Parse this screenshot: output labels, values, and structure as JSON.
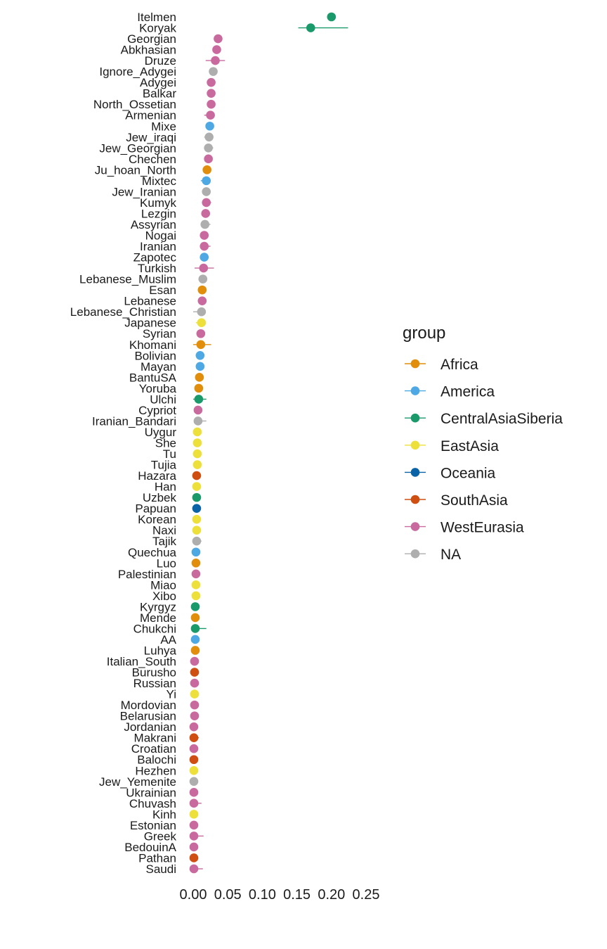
{
  "chart_data": {
    "type": "scatter",
    "subtype": "point-range (dot with horizontal error bars)",
    "title": "",
    "xlabel": "",
    "ylabel": "",
    "xlim": [
      0,
      0.25
    ],
    "x_ticks": [
      0.0,
      0.05,
      0.1,
      0.15,
      0.2,
      0.25
    ],
    "x_tick_labels": [
      "0.00",
      "0.05",
      "0.10",
      "0.15",
      "0.20",
      "0.25"
    ],
    "grid": false,
    "legend": {
      "title": "group",
      "position": "right",
      "entries": [
        "Africa",
        "America",
        "CentralAsiaSiberia",
        "EastAsia",
        "Oceania",
        "SouthAsia",
        "WestEurasia",
        "NA"
      ]
    },
    "group_colors": {
      "Africa": "#E08E0B",
      "America": "#4EA8E4",
      "CentralAsiaSiberia": "#1A9A6B",
      "EastAsia": "#EEE03A",
      "Oceania": "#0A62A7",
      "SouthAsia": "#CF4E12",
      "WestEurasia": "#C96A9E",
      "NA": "#AEAEAE"
    },
    "points": [
      {
        "label": "Itelmen",
        "group": "CentralAsiaSiberia",
        "x": 0.2,
        "lo": 0.195,
        "hi": 0.206
      },
      {
        "label": "Koryak",
        "group": "CentralAsiaSiberia",
        "x": 0.17,
        "lo": 0.152,
        "hi": 0.224
      },
      {
        "label": "Georgian",
        "group": "WestEurasia",
        "x": 0.036,
        "lo": 0.032,
        "hi": 0.04
      },
      {
        "label": "Abkhasian",
        "group": "WestEurasia",
        "x": 0.034,
        "lo": 0.03,
        "hi": 0.04
      },
      {
        "label": "Druze",
        "group": "WestEurasia",
        "x": 0.032,
        "lo": 0.018,
        "hi": 0.046
      },
      {
        "label": "Ignore_Adygei",
        "group": "NA",
        "x": 0.029,
        "lo": 0.026,
        "hi": 0.032
      },
      {
        "label": "Adygei",
        "group": "WestEurasia",
        "x": 0.026,
        "lo": 0.023,
        "hi": 0.03
      },
      {
        "label": "Balkar",
        "group": "WestEurasia",
        "x": 0.026,
        "lo": 0.022,
        "hi": 0.03
      },
      {
        "label": "North_Ossetian",
        "group": "WestEurasia",
        "x": 0.026,
        "lo": 0.023,
        "hi": 0.03
      },
      {
        "label": "Armenian",
        "group": "WestEurasia",
        "x": 0.025,
        "lo": 0.016,
        "hi": 0.031
      },
      {
        "label": "Mixe",
        "group": "America",
        "x": 0.024,
        "lo": 0.021,
        "hi": 0.027
      },
      {
        "label": "Jew_iraqi",
        "group": "NA",
        "x": 0.023,
        "lo": 0.016,
        "hi": 0.029
      },
      {
        "label": "Jew_Georgian",
        "group": "NA",
        "x": 0.022,
        "lo": 0.017,
        "hi": 0.029
      },
      {
        "label": "Chechen",
        "group": "WestEurasia",
        "x": 0.022,
        "lo": 0.019,
        "hi": 0.028
      },
      {
        "label": "Ju_hoan_North",
        "group": "Africa",
        "x": 0.02,
        "lo": 0.017,
        "hi": 0.023
      },
      {
        "label": "Mixtec",
        "group": "America",
        "x": 0.019,
        "lo": 0.011,
        "hi": 0.024
      },
      {
        "label": "Jew_Iranian",
        "group": "NA",
        "x": 0.019,
        "lo": 0.016,
        "hi": 0.022
      },
      {
        "label": "Kumyk",
        "group": "WestEurasia",
        "x": 0.019,
        "lo": 0.016,
        "hi": 0.026
      },
      {
        "label": "Lezgin",
        "group": "WestEurasia",
        "x": 0.018,
        "lo": 0.015,
        "hi": 0.021
      },
      {
        "label": "Assyrian",
        "group": "NA",
        "x": 0.017,
        "lo": 0.013,
        "hi": 0.025
      },
      {
        "label": "Nogai",
        "group": "WestEurasia",
        "x": 0.016,
        "lo": 0.013,
        "hi": 0.02
      },
      {
        "label": "Iranian",
        "group": "WestEurasia",
        "x": 0.016,
        "lo": 0.012,
        "hi": 0.025
      },
      {
        "label": "Zapotec",
        "group": "America",
        "x": 0.016,
        "lo": 0.012,
        "hi": 0.02
      },
      {
        "label": "Turkish",
        "group": "WestEurasia",
        "x": 0.015,
        "lo": 0.002,
        "hi": 0.03
      },
      {
        "label": "Lebanese_Muslim",
        "group": "NA",
        "x": 0.014,
        "lo": 0.009,
        "hi": 0.018
      },
      {
        "label": "Esan",
        "group": "Africa",
        "x": 0.013,
        "lo": 0.008,
        "hi": 0.018
      },
      {
        "label": "Lebanese",
        "group": "WestEurasia",
        "x": 0.013,
        "lo": 0.008,
        "hi": 0.018
      },
      {
        "label": "Lebanese_Christian",
        "group": "NA",
        "x": 0.012,
        "lo": 0.0,
        "hi": 0.018
      },
      {
        "label": "Japanese",
        "group": "EastAsia",
        "x": 0.012,
        "lo": 0.004,
        "hi": 0.016
      },
      {
        "label": "Syrian",
        "group": "WestEurasia",
        "x": 0.011,
        "lo": 0.009,
        "hi": 0.015
      },
      {
        "label": "Khomani",
        "group": "Africa",
        "x": 0.011,
        "lo": 0.0,
        "hi": 0.026
      },
      {
        "label": "Bolivian",
        "group": "America",
        "x": 0.01,
        "lo": 0.007,
        "hi": 0.013
      },
      {
        "label": "Mayan",
        "group": "America",
        "x": 0.01,
        "lo": 0.007,
        "hi": 0.013
      },
      {
        "label": "BantuSA",
        "group": "Africa",
        "x": 0.009,
        "lo": 0.006,
        "hi": 0.013
      },
      {
        "label": "Yoruba",
        "group": "Africa",
        "x": 0.008,
        "lo": 0.004,
        "hi": 0.013
      },
      {
        "label": "Ulchi",
        "group": "CentralAsiaSiberia",
        "x": 0.008,
        "lo": 0.0,
        "hi": 0.019
      },
      {
        "label": "Cypriot",
        "group": "WestEurasia",
        "x": 0.007,
        "lo": 0.004,
        "hi": 0.01
      },
      {
        "label": "Iranian_Bandari",
        "group": "NA",
        "x": 0.007,
        "lo": 0.002,
        "hi": 0.019
      },
      {
        "label": "Uygur",
        "group": "EastAsia",
        "x": 0.006,
        "lo": 0.003,
        "hi": 0.009
      },
      {
        "label": "She",
        "group": "EastAsia",
        "x": 0.006,
        "lo": 0.003,
        "hi": 0.009
      },
      {
        "label": "Tu",
        "group": "EastAsia",
        "x": 0.006,
        "lo": 0.003,
        "hi": 0.009
      },
      {
        "label": "Tujia",
        "group": "EastAsia",
        "x": 0.006,
        "lo": 0.003,
        "hi": 0.009
      },
      {
        "label": "Hazara",
        "group": "SouthAsia",
        "x": 0.005,
        "lo": 0.001,
        "hi": 0.009
      },
      {
        "label": "Han",
        "group": "EastAsia",
        "x": 0.005,
        "lo": 0.002,
        "hi": 0.008
      },
      {
        "label": "Uzbek",
        "group": "CentralAsiaSiberia",
        "x": 0.005,
        "lo": 0.002,
        "hi": 0.008
      },
      {
        "label": "Papuan",
        "group": "Oceania",
        "x": 0.005,
        "lo": 0.001,
        "hi": 0.008
      },
      {
        "label": "Korean",
        "group": "EastAsia",
        "x": 0.005,
        "lo": 0.002,
        "hi": 0.008
      },
      {
        "label": "Naxi",
        "group": "EastAsia",
        "x": 0.005,
        "lo": 0.002,
        "hi": 0.008
      },
      {
        "label": "Tajik",
        "group": "NA",
        "x": 0.005,
        "lo": 0.0,
        "hi": 0.012
      },
      {
        "label": "Quechua",
        "group": "America",
        "x": 0.004,
        "lo": 0.001,
        "hi": 0.008
      },
      {
        "label": "Luo",
        "group": "Africa",
        "x": 0.004,
        "lo": 0.001,
        "hi": 0.007
      },
      {
        "label": "Palestinian",
        "group": "WestEurasia",
        "x": 0.004,
        "lo": 0.001,
        "hi": 0.007
      },
      {
        "label": "Miao",
        "group": "EastAsia",
        "x": 0.004,
        "lo": 0.001,
        "hi": 0.008
      },
      {
        "label": "Xibo",
        "group": "EastAsia",
        "x": 0.004,
        "lo": 0.001,
        "hi": 0.007
      },
      {
        "label": "Kyrgyz",
        "group": "CentralAsiaSiberia",
        "x": 0.003,
        "lo": 0.0,
        "hi": 0.006
      },
      {
        "label": "Mende",
        "group": "Africa",
        "x": 0.003,
        "lo": 0.0,
        "hi": 0.006
      },
      {
        "label": "Chukchi",
        "group": "CentralAsiaSiberia",
        "x": 0.003,
        "lo": 0.0,
        "hi": 0.019
      },
      {
        "label": "AA",
        "group": "America",
        "x": 0.003,
        "lo": 0.0,
        "hi": 0.006
      },
      {
        "label": "Luhya",
        "group": "Africa",
        "x": 0.003,
        "lo": 0.0,
        "hi": 0.006
      },
      {
        "label": "Italian_South",
        "group": "WestEurasia",
        "x": 0.002,
        "lo": 0.0,
        "hi": 0.005
      },
      {
        "label": "Burusho",
        "group": "SouthAsia",
        "x": 0.002,
        "lo": 0.0,
        "hi": 0.005
      },
      {
        "label": "Russian",
        "group": "WestEurasia",
        "x": 0.002,
        "lo": 0.0,
        "hi": 0.005
      },
      {
        "label": "Yi",
        "group": "EastAsia",
        "x": 0.002,
        "lo": 0.0,
        "hi": 0.007
      },
      {
        "label": "Mordovian",
        "group": "WestEurasia",
        "x": 0.002,
        "lo": 0.0,
        "hi": 0.005
      },
      {
        "label": "Belarusian",
        "group": "WestEurasia",
        "x": 0.002,
        "lo": 0.0,
        "hi": 0.005
      },
      {
        "label": "Jordanian",
        "group": "WestEurasia",
        "x": 0.001,
        "lo": 0.0,
        "hi": 0.007
      },
      {
        "label": "Makrani",
        "group": "SouthAsia",
        "x": 0.001,
        "lo": 0.0,
        "hi": 0.008
      },
      {
        "label": "Croatian",
        "group": "WestEurasia",
        "x": 0.001,
        "lo": 0.0,
        "hi": 0.006
      },
      {
        "label": "Balochi",
        "group": "SouthAsia",
        "x": 0.001,
        "lo": 0.0,
        "hi": 0.007
      },
      {
        "label": "Hezhen",
        "group": "EastAsia",
        "x": 0.001,
        "lo": 0.0,
        "hi": 0.005
      },
      {
        "label": "Jew_Yemenite",
        "group": "NA",
        "x": 0.001,
        "lo": 0.0,
        "hi": 0.005
      },
      {
        "label": "Ukrainian",
        "group": "WestEurasia",
        "x": 0.001,
        "lo": 0.0,
        "hi": 0.006
      },
      {
        "label": "Chuvash",
        "group": "WestEurasia",
        "x": 0.001,
        "lo": 0.0,
        "hi": 0.012
      },
      {
        "label": "Kinh",
        "group": "EastAsia",
        "x": 0.001,
        "lo": 0.0,
        "hi": 0.006
      },
      {
        "label": "Estonian",
        "group": "WestEurasia",
        "x": 0.001,
        "lo": 0.0,
        "hi": 0.005
      },
      {
        "label": "Greek",
        "group": "WestEurasia",
        "x": 0.001,
        "lo": 0.0,
        "hi": 0.015
      },
      {
        "label": "BedouinA",
        "group": "WestEurasia",
        "x": 0.001,
        "lo": 0.0,
        "hi": 0.005
      },
      {
        "label": "Pathan",
        "group": "SouthAsia",
        "x": 0.001,
        "lo": 0.0,
        "hi": 0.004
      },
      {
        "label": "Saudi",
        "group": "WestEurasia",
        "x": 0.001,
        "lo": 0.0,
        "hi": 0.014
      }
    ]
  }
}
